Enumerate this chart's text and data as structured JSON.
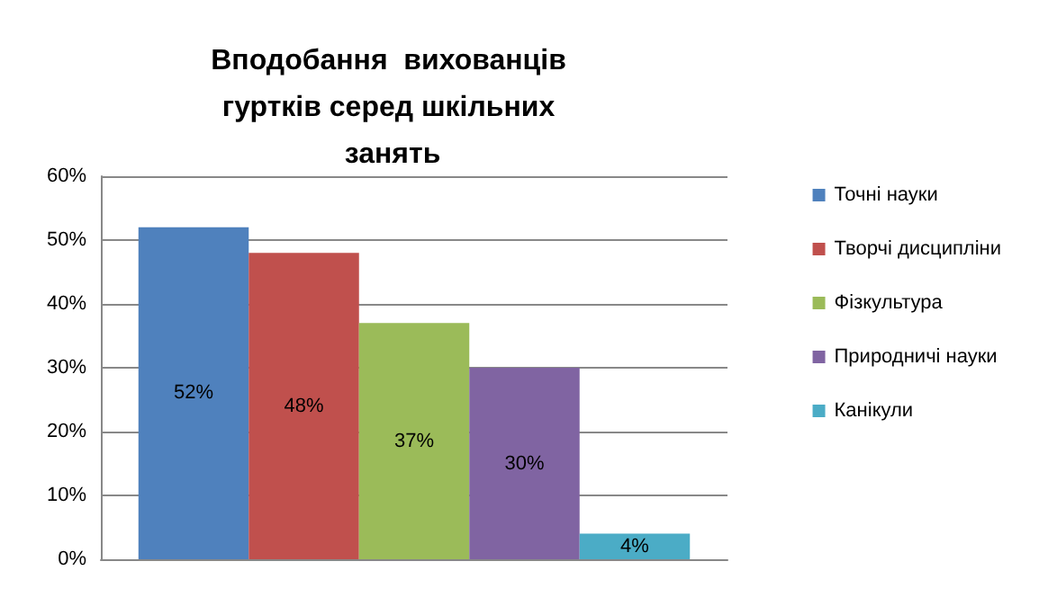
{
  "chart_data": {
    "type": "bar",
    "title": "Вподобання  вихованців гуртків серед шкільних занять",
    "categories": [
      null
    ],
    "series": [
      {
        "name": "Точні науки",
        "color": "#4f81bd",
        "values": [
          52
        ],
        "value_labels": [
          "52%"
        ]
      },
      {
        "name": "Творчі дисципліни",
        "color": "#c0504d",
        "values": [
          48
        ],
        "value_labels": [
          "48%"
        ]
      },
      {
        "name": "Фізкультура",
        "color": "#9bbb59",
        "values": [
          37
        ],
        "value_labels": [
          "37%"
        ]
      },
      {
        "name": "Природничі науки",
        "color": "#8064a2",
        "values": [
          30
        ],
        "value_labels": [
          "30%"
        ]
      },
      {
        "name": "Канікули",
        "color": "#4bacc6",
        "values": [
          4
        ],
        "value_labels": [
          "4%"
        ]
      }
    ],
    "ylim": [
      0,
      60
    ],
    "yticks": [
      {
        "value": 0,
        "label": "0%"
      },
      {
        "value": 10,
        "label": "10%"
      },
      {
        "value": 20,
        "label": "20%"
      },
      {
        "value": 30,
        "label": "30%"
      },
      {
        "value": 40,
        "label": "40%"
      },
      {
        "value": 50,
        "label": "50%"
      },
      {
        "value": 60,
        "label": "60%"
      }
    ],
    "grid": "y",
    "legend": "right"
  }
}
